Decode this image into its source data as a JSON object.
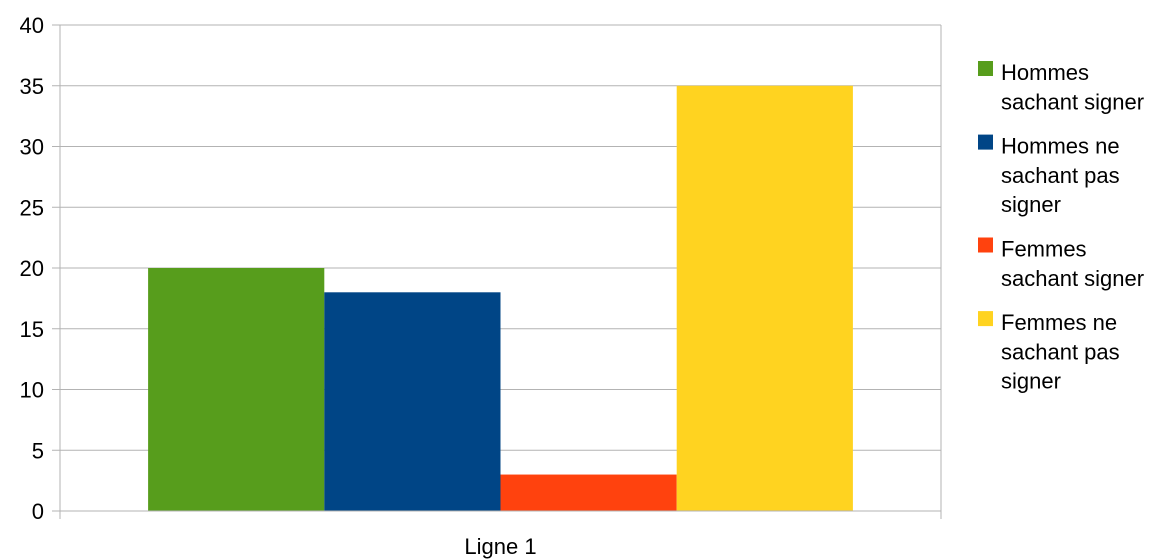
{
  "chart_data": {
    "type": "bar",
    "categories": [
      "Ligne 1"
    ],
    "series": [
      {
        "name": "Hommes sachant signer",
        "label_lines": [
          "Hommes",
          "sachant signer"
        ],
        "values": [
          20
        ],
        "color": "#579D1C"
      },
      {
        "name": "Hommes ne sachant pas signer",
        "label_lines": [
          "Hommes ne",
          "sachant pas",
          "signer"
        ],
        "values": [
          18
        ],
        "color": "#004586"
      },
      {
        "name": "Femmes sachant signer",
        "label_lines": [
          "Femmes",
          "sachant signer"
        ],
        "values": [
          3
        ],
        "color": "#FF420E"
      },
      {
        "name": "Femmes ne sachant pas signer",
        "label_lines": [
          "Femmes ne",
          "sachant pas",
          "signer"
        ],
        "values": [
          35
        ],
        "color": "#FFD320"
      }
    ],
    "ylim": [
      0,
      40
    ],
    "yticks": [
      0,
      5,
      10,
      15,
      20,
      25,
      30,
      35,
      40
    ],
    "title": "",
    "xlabel": "",
    "ylabel": "",
    "grid": true,
    "legend_position": "right"
  }
}
